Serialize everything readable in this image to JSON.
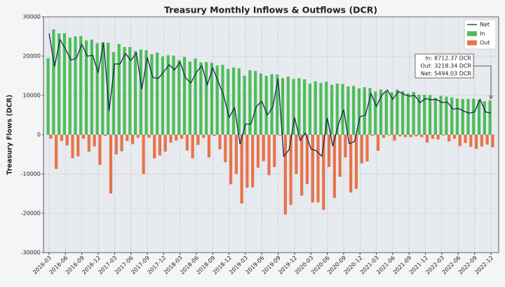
{
  "chart_data": {
    "type": "bar",
    "title": "Treasury Monthly Inflows & Outflows (DCR)",
    "y_label": "Treasury Flows (DCR)",
    "categories": [
      "2016-03",
      null,
      null,
      "2016-06",
      null,
      null,
      "2016-09",
      null,
      null,
      "2016-12",
      null,
      null,
      "2017-03",
      null,
      null,
      "2017-06",
      null,
      null,
      "2017-09",
      null,
      null,
      "2017-12",
      null,
      null,
      "2018-03",
      null,
      null,
      "2018-06",
      null,
      null,
      "2018-09",
      null,
      null,
      "2018-12",
      null,
      null,
      "2019-03",
      null,
      null,
      "2019-06",
      null,
      null,
      "2019-09",
      null,
      null,
      "2019-12",
      null,
      null,
      "2020-03",
      null,
      null,
      "2020-06",
      null,
      null,
      "2020-09",
      null,
      null,
      "2020-12",
      null,
      null,
      "2021-03",
      null,
      null,
      "2021-06",
      null,
      null,
      "2021-09",
      null,
      null,
      "2021-12",
      null,
      null,
      "2022-03",
      null,
      null,
      "2022-06",
      null,
      null,
      "2022-09",
      null,
      null,
      "2022-12"
    ],
    "series": [
      {
        "name": "Net",
        "type": "line",
        "color": "#1b2a4a",
        "values": [
          25800,
          17300,
          24200,
          21800,
          19000,
          19500,
          23000,
          20000,
          20200,
          15800,
          23500,
          6000,
          18000,
          18000,
          20700,
          18900,
          20800,
          11600,
          19700,
          14600,
          14300,
          16000,
          17800,
          16500,
          18500,
          14500,
          13200,
          15900,
          17600,
          12700,
          17000,
          13500,
          10000,
          4400,
          6900,
          -2400,
          2700,
          2700,
          7200,
          8500,
          5000,
          7000,
          14300,
          -5500,
          -3800,
          4400,
          -1400,
          400,
          -3600,
          -4100,
          -5500,
          4300,
          -2900,
          2500,
          6400,
          -2300,
          -1700,
          4600,
          5000,
          10500,
          7200,
          10100,
          11400,
          9000,
          11000,
          10300,
          9800,
          10000,
          8200,
          9200,
          8900,
          9000,
          8200,
          8300,
          6500,
          6700,
          6000,
          5500,
          5800,
          9000,
          5800,
          5494.03
        ]
      },
      {
        "name": "In",
        "type": "bar",
        "color": "#4dbd5a",
        "values": [
          19500,
          26800,
          25800,
          25800,
          24700,
          25000,
          25100,
          24000,
          24200,
          23300,
          23500,
          23400,
          21000,
          23100,
          22300,
          22300,
          21300,
          21700,
          21500,
          20500,
          20900,
          19900,
          20200,
          20100,
          19000,
          19800,
          18600,
          19400,
          18400,
          18500,
          18300,
          17600,
          17800,
          16800,
          17100,
          16900,
          15000,
          16400,
          16200,
          15600,
          15000,
          15400,
          15300,
          14400,
          14800,
          14200,
          14400,
          14100,
          13000,
          13600,
          13200,
          13500,
          12700,
          13000,
          12900,
          12300,
          12400,
          11800,
          12100,
          11900,
          11000,
          11500,
          11000,
          10800,
          11500,
          11100,
          10500,
          10900,
          10200,
          10200,
          10100,
          9400,
          9900,
          9700,
          9500,
          9200,
          9100,
          9100,
          9200,
          8900,
          8500,
          8712.37
        ]
      },
      {
        "name": "Out",
        "type": "bar",
        "color": "#e8734a",
        "values": [
          -1000,
          -8700,
          -1600,
          -2700,
          -6000,
          -5500,
          -1000,
          -4300,
          -3000,
          -7700,
          -300,
          -15000,
          -5000,
          -4200,
          -1600,
          -2400,
          -800,
          -10000,
          -800,
          -6000,
          -5300,
          -4300,
          -2000,
          -1500,
          -1000,
          -4000,
          -6000,
          -2600,
          -800,
          -5800,
          -300,
          -3700,
          -7000,
          -12600,
          -10000,
          -17500,
          -13500,
          -13400,
          -8400,
          -6700,
          -10300,
          -8200,
          -200,
          -20300,
          -17900,
          -10000,
          -15500,
          -12500,
          -17200,
          -17200,
          -19100,
          -8200,
          -16100,
          -10700,
          -5800,
          -14700,
          -13800,
          -7300,
          -6800,
          -300,
          -4100,
          -800,
          -200,
          -1500,
          -400,
          -600,
          -600,
          -400,
          -600,
          -2000,
          -1000,
          -1200,
          -200,
          -1700,
          -1000,
          -2900,
          -2100,
          -3100,
          -3600,
          -3000,
          -2500,
          -3218.34
        ]
      }
    ],
    "ylim": [
      -30000,
      30000
    ],
    "yticks": [
      -30000,
      -20000,
      -10000,
      0,
      10000,
      20000,
      30000
    ],
    "grid": true,
    "legend": "upper right",
    "annotation": [
      "In: 8712.37 DCR",
      "Out: 3218.34 DCR",
      "Net: 5494.03 DCR"
    ]
  }
}
